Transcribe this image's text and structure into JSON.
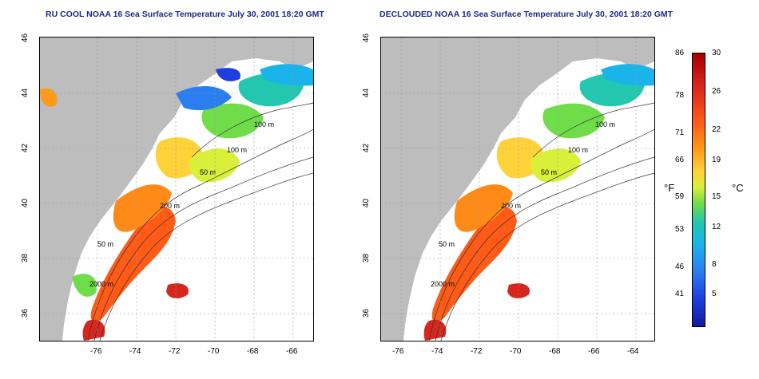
{
  "panels": [
    {
      "title": "RU COOL NOAA 16 Sea Surface Temperature July 30, 2001 18:20 GMT",
      "mode": "cloudy"
    },
    {
      "title": "DECLOUDED NOAA 16 Sea Surface Temperature July 30, 2001 18:20 GMT",
      "mode": "clean"
    }
  ],
  "axes": {
    "x_ticks": [
      "-76",
      "-74",
      "-72",
      "-70",
      "-68",
      "-66",
      "-64"
    ],
    "y_ticks": [
      "46",
      "44",
      "42",
      "40",
      "38",
      "36"
    ]
  },
  "contour_labels": [
    "100 m",
    "100 m",
    "50 m",
    "200 m",
    "50 m",
    "2000 m"
  ],
  "colorbar": {
    "f_label": "°F",
    "c_label": "°C",
    "f_ticks": [
      "86",
      "78",
      "71",
      "66",
      "59",
      "53",
      "46",
      "41"
    ],
    "c_ticks": [
      "30",
      "26",
      "22",
      "19",
      "15",
      "12",
      "8",
      "5"
    ]
  },
  "colors": {
    "land": "#bdbdbd",
    "title": "#1a2a8a",
    "grid": "#9a9a9a"
  }
}
